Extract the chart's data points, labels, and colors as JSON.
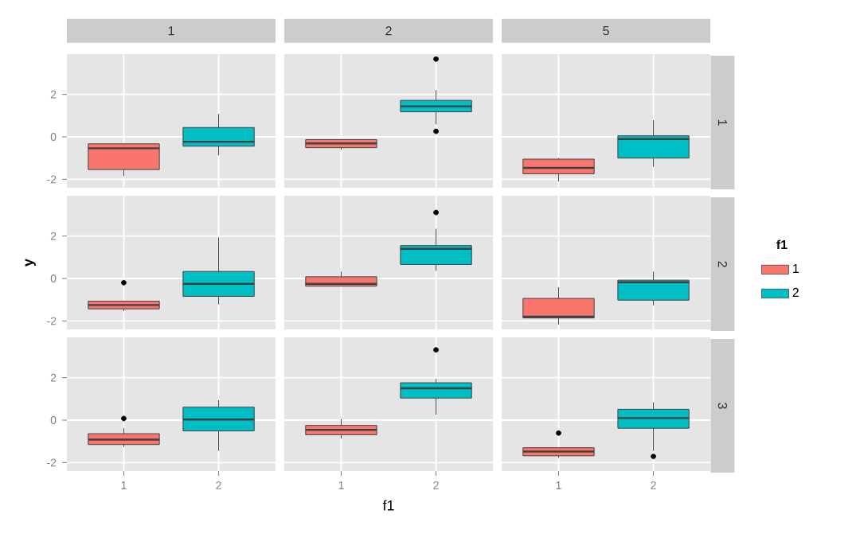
{
  "chart_data": [
    {
      "type": "box",
      "title": "1",
      "categories": [
        "1",
        "2"
      ],
      "ylim": [
        -2.4,
        3.9
      ],
      "yticks": [
        -2,
        0,
        2
      ],
      "grid": true,
      "tick_labels": "y",
      "series": [
        {
          "color": "#f8766d",
          "boxes": [
            {
              "low": -1.85,
              "q1": -1.54,
              "median": -0.54,
              "q3": -0.33,
              "high": -0.3
            },
            null
          ]
        },
        {
          "color": "#00bfc4",
          "boxes": [
            null,
            {
              "low": -0.87,
              "q1": -0.44,
              "median": -0.23,
              "q3": 0.44,
              "high": 1.08
            }
          ]
        }
      ]
    },
    {
      "type": "box",
      "title": "2",
      "categories": [
        "1",
        "2"
      ],
      "ylim": [
        -2.4,
        3.9
      ],
      "yticks": [
        -2,
        0,
        2
      ],
      "grid": true,
      "tick_labels": false,
      "series": [
        {
          "color": "#f8766d",
          "boxes": [
            {
              "low": -0.6,
              "q1": -0.51,
              "median": -0.31,
              "q3": -0.13,
              "high": -0.1
            },
            null
          ]
        },
        {
          "color": "#00bfc4",
          "boxes": [
            null,
            {
              "low": 0.59,
              "q1": 1.18,
              "median": 1.44,
              "q3": 1.72,
              "high": 2.2,
              "outliers": [
                3.67,
                0.26
              ]
            }
          ]
        }
      ]
    },
    {
      "type": "box",
      "title": "5",
      "y2label": "1",
      "categories": [
        "1",
        "2"
      ],
      "ylim": [
        -2.4,
        3.9
      ],
      "yticks": [
        -2,
        0,
        2
      ],
      "grid": true,
      "tick_labels": false,
      "series": [
        {
          "color": "#f8766d",
          "boxes": [
            {
              "low": -2.1,
              "q1": -1.74,
              "median": -1.46,
              "q3": -1.05,
              "high": -1.0
            },
            null
          ]
        },
        {
          "color": "#00bfc4",
          "boxes": [
            null,
            {
              "low": -1.41,
              "q1": -1.0,
              "median": -0.1,
              "q3": 0.05,
              "high": 0.79
            }
          ]
        }
      ]
    },
    {
      "type": "box",
      "ylabel": "y",
      "categories": [
        "1",
        "2"
      ],
      "ylim": [
        -2.4,
        3.9
      ],
      "yticks": [
        -2,
        0,
        2
      ],
      "grid": true,
      "tick_labels": "y",
      "series": [
        {
          "color": "#f8766d",
          "boxes": [
            {
              "low": -1.53,
              "q1": -1.43,
              "median": -1.25,
              "q3": -1.07,
              "high": -1.05,
              "outliers": [
                -0.2
              ]
            },
            null
          ]
        },
        {
          "color": "#00bfc4",
          "boxes": [
            null,
            {
              "low": -1.22,
              "q1": -0.84,
              "median": -0.25,
              "q3": 0.33,
              "high": 1.94
            }
          ]
        }
      ]
    },
    {
      "type": "box",
      "categories": [
        "1",
        "2"
      ],
      "ylim": [
        -2.4,
        3.9
      ],
      "yticks": [
        -2,
        0,
        2
      ],
      "grid": true,
      "tick_labels": false,
      "series": [
        {
          "color": "#f8766d",
          "boxes": [
            {
              "low": -0.36,
              "q1": -0.36,
              "median": -0.25,
              "q3": 0.08,
              "high": 0.33
            },
            null
          ]
        },
        {
          "color": "#00bfc4",
          "boxes": [
            null,
            {
              "low": 0.36,
              "q1": 0.66,
              "median": 1.4,
              "q3": 1.55,
              "high": 2.34,
              "outliers": [
                3.11
              ]
            }
          ]
        }
      ]
    },
    {
      "type": "box",
      "y2label": "2",
      "legend": "right",
      "legend_title": "f1",
      "categories": [
        "1",
        "2"
      ],
      "ylim": [
        -2.4,
        3.9
      ],
      "yticks": [
        -2,
        0,
        2
      ],
      "grid": true,
      "tick_labels": false,
      "series": [
        {
          "name": "1",
          "color": "#f8766d",
          "boxes": [
            {
              "low": -2.17,
              "q1": -1.86,
              "median": -1.8,
              "q3": -0.94,
              "high": -0.41
            },
            null
          ]
        },
        {
          "name": "2",
          "color": "#00bfc4",
          "boxes": [
            null,
            {
              "low": -1.27,
              "q1": -1.02,
              "median": -0.18,
              "q3": -0.08,
              "high": 0.33
            }
          ]
        }
      ]
    },
    {
      "type": "box",
      "categories": [
        "1",
        "2"
      ],
      "ylim": [
        -2.4,
        3.9
      ],
      "yticks": [
        -2,
        0,
        2
      ],
      "grid": true,
      "series": [
        {
          "color": "#f8766d",
          "boxes": [
            {
              "low": -1.27,
              "q1": -1.15,
              "median": -0.92,
              "q3": -0.64,
              "high": -0.38,
              "outliers": [
                0.08
              ]
            },
            null
          ]
        },
        {
          "color": "#00bfc4",
          "boxes": [
            null,
            {
              "low": -1.45,
              "q1": -0.51,
              "median": 0.03,
              "q3": 0.61,
              "high": 0.94
            }
          ]
        }
      ]
    },
    {
      "type": "box",
      "xlabel": "f1",
      "categories": [
        "1",
        "2"
      ],
      "ylim": [
        -2.4,
        3.9
      ],
      "yticks": [
        -2,
        0,
        2
      ],
      "grid": true,
      "tick_labels": "x",
      "series": [
        {
          "color": "#f8766d",
          "boxes": [
            {
              "low": -0.87,
              "q1": -0.69,
              "median": -0.46,
              "q3": -0.25,
              "high": 0.05
            },
            null
          ]
        },
        {
          "color": "#00bfc4",
          "boxes": [
            null,
            {
              "low": 0.25,
              "q1": 1.04,
              "median": 1.5,
              "q3": 1.76,
              "high": 1.94,
              "outliers": [
                3.31
              ]
            }
          ]
        }
      ]
    },
    {
      "type": "box",
      "y2label": "3",
      "categories": [
        "1",
        "2"
      ],
      "ylim": [
        -2.4,
        3.9
      ],
      "yticks": [
        -2,
        0,
        2
      ],
      "grid": true,
      "tick_labels": "x",
      "series": [
        {
          "color": "#f8766d",
          "boxes": [
            {
              "low": -1.78,
              "q1": -1.68,
              "median": -1.48,
              "q3": -1.3,
              "high": -1.3,
              "outliers": [
                -0.61
              ]
            },
            null
          ]
        },
        {
          "color": "#00bfc4",
          "boxes": [
            null,
            {
              "low": -1.45,
              "q1": -0.38,
              "median": 0.1,
              "q3": 0.51,
              "high": 0.84,
              "outliers": [
                -1.71
              ]
            }
          ]
        }
      ]
    }
  ]
}
